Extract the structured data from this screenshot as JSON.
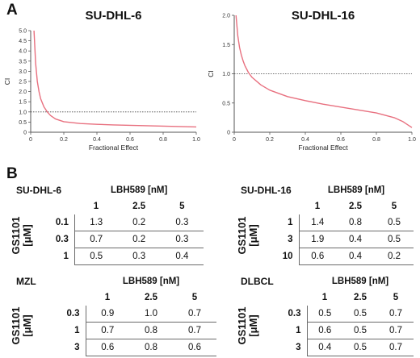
{
  "panels": {
    "a": "A",
    "b": "B"
  },
  "chart_data": [
    {
      "type": "line",
      "title": "SU-DHL-6",
      "xlabel": "Fractional Effect",
      "ylabel": "CI",
      "xlim": [
        0,
        1.0
      ],
      "ylim": [
        0,
        5.0
      ],
      "x_ticks": [
        "0",
        "0.2",
        "0.4",
        "0.6",
        "0.8",
        "1.0"
      ],
      "y_ticks": [
        "0",
        "0.5",
        "1.0",
        "1.5",
        "2.0",
        "2.5",
        "3.0",
        "3.5",
        "4.0",
        "4.5",
        "5.0"
      ],
      "reference_line": 1.0,
      "line_color": "#e8707f",
      "series": [
        {
          "x": [
            0.02,
            0.03,
            0.04,
            0.05,
            0.06,
            0.08,
            0.1,
            0.12,
            0.15,
            0.2,
            0.3,
            0.4,
            0.5,
            0.6,
            0.7,
            0.8,
            0.9,
            1.0
          ],
          "y": [
            5.0,
            3.4,
            2.5,
            2.0,
            1.65,
            1.25,
            1.0,
            0.82,
            0.65,
            0.52,
            0.43,
            0.39,
            0.36,
            0.34,
            0.32,
            0.3,
            0.28,
            0.26
          ]
        }
      ]
    },
    {
      "type": "line",
      "title": "SU-DHL-16",
      "xlabel": "Fractional Effect",
      "ylabel": "CI",
      "xlim": [
        0,
        1.0
      ],
      "ylim": [
        0,
        2.0
      ],
      "x_ticks": [
        "0",
        "0.2",
        "0.4",
        "0.6",
        "0.8",
        "1.0"
      ],
      "y_ticks": [
        "0",
        "0.5",
        "1.0",
        "1.5",
        "2.0"
      ],
      "reference_line": 1.0,
      "line_color": "#e8707f",
      "series": [
        {
          "x": [
            0.01,
            0.02,
            0.03,
            0.04,
            0.05,
            0.06,
            0.08,
            0.1,
            0.15,
            0.2,
            0.3,
            0.4,
            0.5,
            0.6,
            0.7,
            0.8,
            0.9,
            0.95,
            1.0
          ],
          "y": [
            2.0,
            1.65,
            1.45,
            1.32,
            1.22,
            1.14,
            1.02,
            0.94,
            0.81,
            0.72,
            0.61,
            0.54,
            0.48,
            0.43,
            0.38,
            0.33,
            0.25,
            0.18,
            0.08
          ]
        }
      ]
    },
    {
      "type": "table",
      "title": "SU-DHL-6",
      "col_header": "LBH589 [nM]",
      "row_header": "GS1101",
      "row_unit": "[μM]",
      "columns": [
        "1",
        "2.5",
        "5"
      ],
      "rows": [
        "0.1",
        "0.3",
        "1"
      ],
      "values": [
        [
          "1.3",
          "0.2",
          "0.3"
        ],
        [
          "0.7",
          "0.2",
          "0.3"
        ],
        [
          "0.5",
          "0.3",
          "0.4"
        ]
      ]
    },
    {
      "type": "table",
      "title": "SU-DHL-16",
      "col_header": "LBH589 [nM]",
      "row_header": "GS1101",
      "row_unit": "[μM]",
      "columns": [
        "1",
        "2.5",
        "5"
      ],
      "rows": [
        "1",
        "3",
        "10"
      ],
      "values": [
        [
          "1.4",
          "0.8",
          "0.5"
        ],
        [
          "1.9",
          "0.4",
          "0.5"
        ],
        [
          "0.6",
          "0.4",
          "0.2"
        ]
      ]
    },
    {
      "type": "table",
      "title": "MZL",
      "col_header": "LBH589 [nM]",
      "row_header": "GS1101",
      "row_unit": "[μM]",
      "columns": [
        "1",
        "2.5",
        "5"
      ],
      "rows": [
        "0.3",
        "1",
        "3"
      ],
      "values": [
        [
          "0.9",
          "1.0",
          "0.7"
        ],
        [
          "0.7",
          "0.8",
          "0.7"
        ],
        [
          "0.6",
          "0.8",
          "0.6"
        ]
      ]
    },
    {
      "type": "table",
      "title": "DLBCL",
      "col_header": "LBH589 [nM]",
      "row_header": "GS1101",
      "row_unit": "[μM]",
      "columns": [
        "1",
        "2.5",
        "5"
      ],
      "rows": [
        "0.3",
        "1",
        "3"
      ],
      "values": [
        [
          "0.5",
          "0.5",
          "0.7"
        ],
        [
          "0.6",
          "0.5",
          "0.7"
        ],
        [
          "0.4",
          "0.5",
          "0.7"
        ]
      ]
    }
  ]
}
